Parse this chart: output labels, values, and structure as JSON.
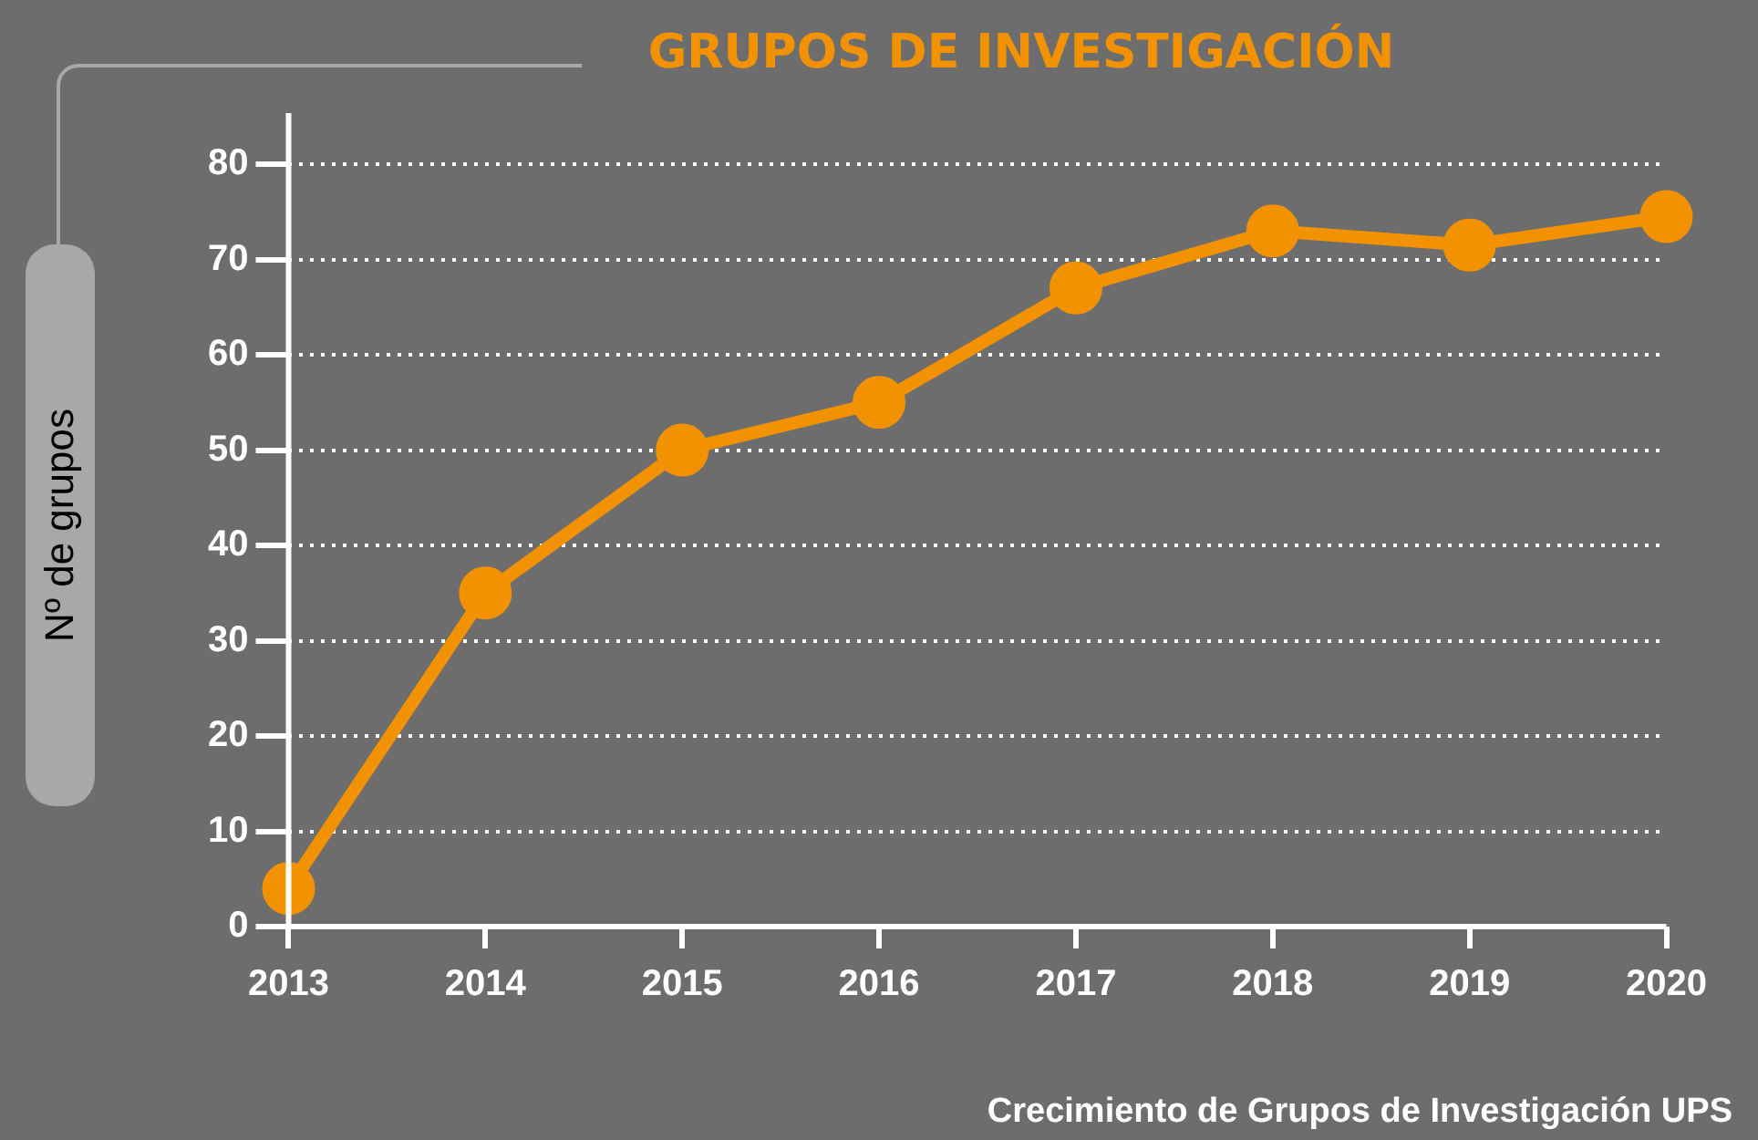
{
  "chart_data": {
    "type": "line",
    "title": "GRUPOS DE INVESTIGACIÓN",
    "ylabel": "Nº de grupos",
    "categories": [
      "2013",
      "2014",
      "2015",
      "2016",
      "2017",
      "2018",
      "2019",
      "2020"
    ],
    "series": [
      {
        "color": "#f39200",
        "values": [
          4,
          35,
          50,
          55,
          67,
          73,
          71.5,
          74.5
        ]
      }
    ],
    "ylim": [
      0,
      80
    ],
    "yticks": [
      0,
      10,
      20,
      30,
      40,
      50,
      60,
      70,
      80
    ],
    "grid": "y",
    "legend": false,
    "marker": "circle",
    "line_style": "solid",
    "annotations": [
      "Crecimiento de Grupos de Investigación UPS"
    ]
  }
}
